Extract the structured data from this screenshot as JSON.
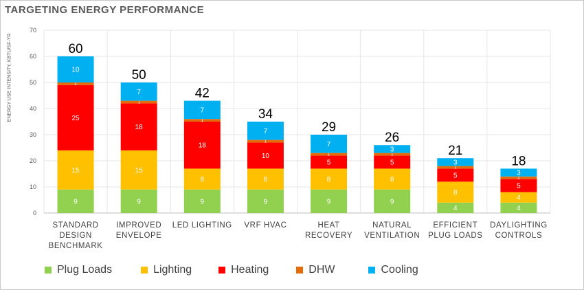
{
  "title": "TARGETING ENERGY PERFORMANCE",
  "chart_data": {
    "type": "bar",
    "stacked": true,
    "title": "TARGETING ENERGY PERFORMANCE",
    "ylabel": "ENERGY USE INTENSITY, KBTU/SF-YR",
    "xlabel": "",
    "ylim": [
      0,
      70
    ],
    "yticks": [
      0,
      10,
      20,
      30,
      40,
      50,
      60,
      70
    ],
    "grid": true,
    "legend_position": "bottom",
    "categories": [
      [
        "STANDARD",
        "DESIGN",
        "BENCHMARK"
      ],
      [
        "IMPROVED",
        "ENVELOPE"
      ],
      [
        "LED LIGHTING"
      ],
      [
        "VRF HVAC"
      ],
      [
        "HEAT",
        "RECOVERY"
      ],
      [
        "NATURAL",
        "VENTILATION"
      ],
      [
        "EFFICIENT",
        "PLUG LOADS"
      ],
      [
        "DAYLIGHTING",
        "CONTROLS"
      ]
    ],
    "totals": [
      60,
      50,
      42,
      34,
      29,
      26,
      21,
      18
    ],
    "series": [
      {
        "name": "Plug Loads",
        "color": "#92d050",
        "values": [
          9,
          9,
          9,
          9,
          9,
          9,
          4,
          4
        ]
      },
      {
        "name": "Lighting",
        "color": "#ffc000",
        "values": [
          15,
          15,
          8,
          8,
          8,
          8,
          8,
          4
        ]
      },
      {
        "name": "Heating",
        "color": "#ff0000",
        "values": [
          25,
          18,
          18,
          10,
          5,
          5,
          5,
          5
        ]
      },
      {
        "name": "DHW",
        "color": "#e46c0a",
        "values": [
          1,
          1,
          1,
          1,
          1,
          1,
          1,
          1
        ]
      },
      {
        "name": "Cooling",
        "color": "#00b0f0",
        "values": [
          10,
          7,
          7,
          7,
          7,
          3,
          3,
          3
        ]
      }
    ]
  }
}
